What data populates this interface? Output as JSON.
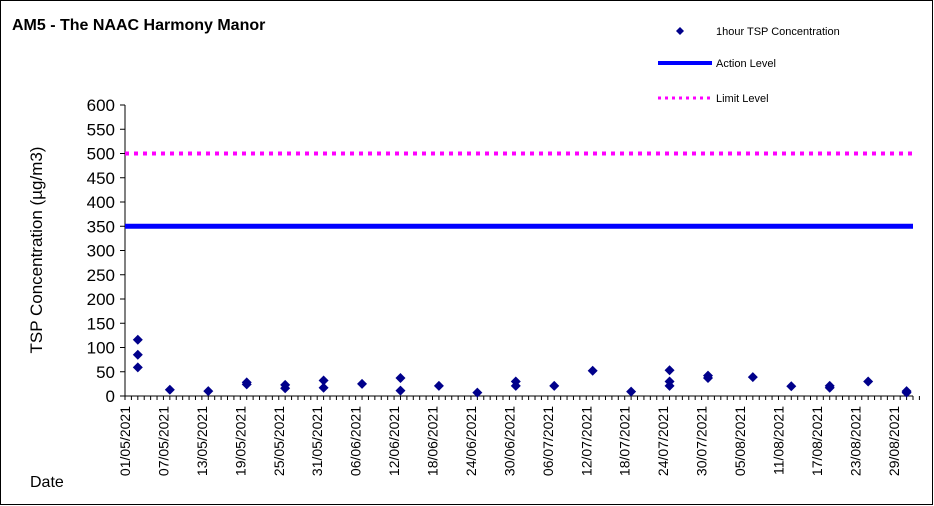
{
  "chart_data": {
    "type": "scatter",
    "title": "AM5 - The NAAC Harmony Manor",
    "xlabel": "Date",
    "ylabel": "TSP Concentration (µg/m3)",
    "ylim": [
      0,
      600
    ],
    "yticks": [
      0,
      50,
      100,
      150,
      200,
      250,
      300,
      350,
      400,
      450,
      500,
      550,
      600
    ],
    "xlim": [
      "2021-05-01",
      "2021-09-01"
    ],
    "xticks": [
      "01/05/2021",
      "07/05/2021",
      "13/05/2021",
      "19/05/2021",
      "25/05/2021",
      "31/05/2021",
      "06/06/2021",
      "12/06/2021",
      "18/06/2021",
      "24/06/2021",
      "30/06/2021",
      "06/07/2021",
      "12/07/2021",
      "18/07/2021",
      "24/07/2021",
      "30/07/2021",
      "05/08/2021",
      "11/08/2021",
      "17/08/2021",
      "23/08/2021",
      "29/08/2021"
    ],
    "grid": false,
    "legend_position": "top-right",
    "legend": [
      "1hour TSP Concentration",
      "Action Level",
      "Limit Level"
    ],
    "series": [
      {
        "name": "1hour TSP Concentration",
        "marker": "diamond",
        "color": "#00008b",
        "points": [
          {
            "x": "2021-05-03",
            "y": 116
          },
          {
            "x": "2021-05-03",
            "y": 85
          },
          {
            "x": "2021-05-03",
            "y": 59
          },
          {
            "x": "2021-05-08",
            "y": 13
          },
          {
            "x": "2021-05-14",
            "y": 10
          },
          {
            "x": "2021-05-20",
            "y": 28
          },
          {
            "x": "2021-05-20",
            "y": 24
          },
          {
            "x": "2021-05-26",
            "y": 23
          },
          {
            "x": "2021-05-26",
            "y": 16
          },
          {
            "x": "2021-06-01",
            "y": 32
          },
          {
            "x": "2021-06-01",
            "y": 17
          },
          {
            "x": "2021-06-07",
            "y": 25
          },
          {
            "x": "2021-06-13",
            "y": 37
          },
          {
            "x": "2021-06-13",
            "y": 11
          },
          {
            "x": "2021-06-19",
            "y": 21
          },
          {
            "x": "2021-06-25",
            "y": 7
          },
          {
            "x": "2021-07-01",
            "y": 30
          },
          {
            "x": "2021-07-01",
            "y": 21
          },
          {
            "x": "2021-07-07",
            "y": 21
          },
          {
            "x": "2021-07-13",
            "y": 52
          },
          {
            "x": "2021-07-19",
            "y": 9
          },
          {
            "x": "2021-07-25",
            "y": 53
          },
          {
            "x": "2021-07-25",
            "y": 30
          },
          {
            "x": "2021-07-25",
            "y": 21
          },
          {
            "x": "2021-07-31",
            "y": 42
          },
          {
            "x": "2021-07-31",
            "y": 37
          },
          {
            "x": "2021-08-07",
            "y": 39
          },
          {
            "x": "2021-08-13",
            "y": 20
          },
          {
            "x": "2021-08-19",
            "y": 21
          },
          {
            "x": "2021-08-19",
            "y": 17
          },
          {
            "x": "2021-08-25",
            "y": 30
          },
          {
            "x": "2021-08-31",
            "y": 10
          },
          {
            "x": "2021-08-31",
            "y": 7
          }
        ]
      },
      {
        "name": "Action Level",
        "type": "line",
        "style": "solid",
        "color": "#0000ff",
        "y": 350
      },
      {
        "name": "Limit Level",
        "type": "line",
        "style": "dotted",
        "color": "#ff00ff",
        "y": 500
      }
    ]
  }
}
